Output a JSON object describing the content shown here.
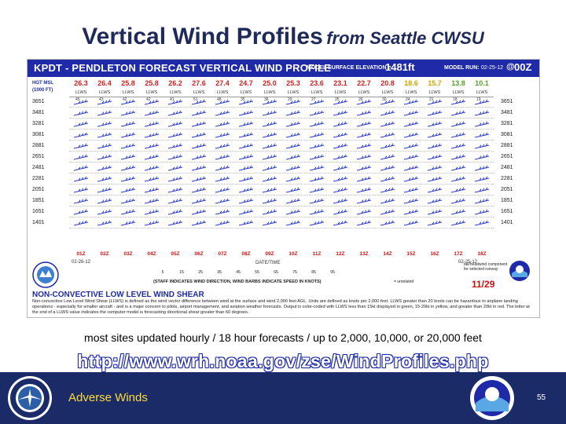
{
  "slide": {
    "title_main": "Vertical Wind Profiles",
    "title_sub": "from Seattle CWSU",
    "caption": "most sites updated hourly  / 18 hour forecasts / up to 2,000, 10,000, or 20,000 feet",
    "url": "http://www.wrh.noaa.gov/zse/WindProfiles.php",
    "footer_title": "Adverse Winds",
    "page_number": "55"
  },
  "chart": {
    "title": "KPDT - PENDLETON FORECAST VERTICAL WIND PROFILE",
    "elevation_label": "MODEL SURFACE ELEVATION =",
    "elevation_value": "1481ft",
    "run_label": "MODEL RUN:",
    "run_date": "02-25-12",
    "run_at": "@",
    "run_time": "00Z",
    "hgt_label": "HGT MSL",
    "hgt_unit": "(1000 FT)",
    "temps": [
      "26.3",
      "26.4",
      "25.8",
      "25.8",
      "26.2",
      "27.6",
      "27.4",
      "24.7",
      "25.0",
      "25.3",
      "23.6",
      "23.1",
      "22.7",
      "20.8",
      "18.6",
      "15.7",
      "13.8",
      "10.1"
    ],
    "temp_colors": [
      "#cc2222",
      "#cc2222",
      "#cc2222",
      "#cc2222",
      "#cc2222",
      "#cc2222",
      "#cc2222",
      "#cc2222",
      "#cc2222",
      "#cc2222",
      "#cc2222",
      "#cc2222",
      "#cc2222",
      "#cc2222",
      "#d4a600",
      "#d4a600",
      "#5c9e2e",
      "#5c9e2e"
    ],
    "llws_label": "LLWS",
    "altitudes": [
      "3651",
      "3481",
      "3281",
      "3081",
      "2881",
      "2651",
      "2481",
      "2281",
      "2051",
      "1851",
      "1651",
      "1401"
    ],
    "speeds": [
      [
        "45",
        "43",
        "42",
        "42",
        "41",
        "51",
        "48",
        "35",
        "36",
        "29",
        "27",
        "25",
        "26",
        "30",
        "24",
        "21",
        "18",
        "19"
      ],
      [
        "",
        "",
        "",
        "",
        "",
        "",
        "",
        "",
        "",
        "",
        "",
        "",
        "",
        "",
        "",
        "",
        "",
        ""
      ],
      [
        "",
        "",
        "",
        "",
        "",
        "",
        "",
        "",
        "",
        "",
        "",
        "",
        "",
        "",
        "",
        "",
        "",
        ""
      ],
      [
        "",
        "",
        "",
        "",
        "",
        "",
        "",
        "",
        "",
        "",
        "",
        "",
        "",
        "",
        "",
        "",
        "",
        ""
      ],
      [
        "",
        "",
        "",
        "",
        "",
        "",
        "",
        "",
        "",
        "",
        "",
        "",
        "",
        "",
        "",
        "",
        "",
        ""
      ],
      [
        "",
        "",
        "",
        "",
        "",
        "",
        "",
        "",
        "",
        "",
        "",
        "",
        "",
        "",
        "",
        "",
        "",
        ""
      ],
      [
        "",
        "",
        "",
        "",
        "",
        "",
        "",
        "",
        "",
        "",
        "",
        "",
        "",
        "",
        "",
        "",
        "",
        ""
      ],
      [
        "",
        "",
        "",
        "",
        "",
        "",
        "",
        "",
        "",
        "",
        "",
        "",
        "",
        "",
        "",
        "",
        "",
        ""
      ],
      [
        "",
        "",
        "",
        "",
        "",
        "",
        "",
        "",
        "",
        "",
        "",
        "",
        "",
        "",
        "",
        "",
        "",
        ""
      ],
      [
        "",
        "",
        "",
        "",
        "",
        "",
        "",
        "",
        "",
        "",
        "",
        "",
        "",
        "",
        "",
        "",
        "",
        ""
      ],
      [
        "",
        "",
        "",
        "",
        "",
        "",
        "",
        "",
        "",
        "",
        "",
        "",
        "",
        "",
        "",
        "",
        "",
        ""
      ],
      [
        "",
        "",
        "",
        "",
        "",
        "",
        "",
        "",
        "",
        "",
        "",
        "",
        "",
        "",
        "",
        "",
        "",
        ""
      ]
    ],
    "times": [
      "01Z",
      "02Z",
      "03Z",
      "04Z",
      "05Z",
      "06Z",
      "07Z",
      "08Z",
      "09Z",
      "10Z",
      "11Z",
      "12Z",
      "13Z",
      "14Z",
      "15Z",
      "16Z",
      "17Z",
      "18Z"
    ],
    "date_left": "02-26-12",
    "date_right": "02-25-12",
    "datetime_label": "DATE/TIME",
    "legend_items": [
      "5",
      "15",
      "25",
      "35",
      "45",
      "55",
      "65",
      "75",
      "85",
      "95"
    ],
    "legend_note": "(STAFF INDICATES WIND DIRECTION, WIND BARBS INDICATE SPEED IN KNOTS)",
    "legend_unrelated": "= unrelated",
    "legend_half": "tail/headwind component for selected runway",
    "frame_label": "11/29",
    "shear_title": "NON-CONVECTIVE LOW LEVEL WIND SHEAR",
    "shear_text": "Non-convective Low Level Wind Shear (LLWS) is defined as the wind vector difference between wind at the surface and wind 2,000 feet AGL. Units are defined as knots per 2,000 feet. LLWS greater than 20 knots can be hazardous to airplane landing operations - especially for smaller aircraft - and is a major concern to pilots, airport management, and aviation weather forecasts. Output is color-coded with LLWS less than 15kt displayed in green, 15-20kt in yellow, and greater than 20kt in red. The letter at the end of a LLWS value indicates the computer model is forecasting directional shear greater than 60 degrees."
  },
  "colors": {
    "title": "#1f2a5a",
    "header_blue": "#1e2aa8",
    "footer_blue": "#1b2b68",
    "footer_text": "#ffdd33",
    "barb_blue": "#2b3cc4",
    "time_red": "#cc1111"
  }
}
